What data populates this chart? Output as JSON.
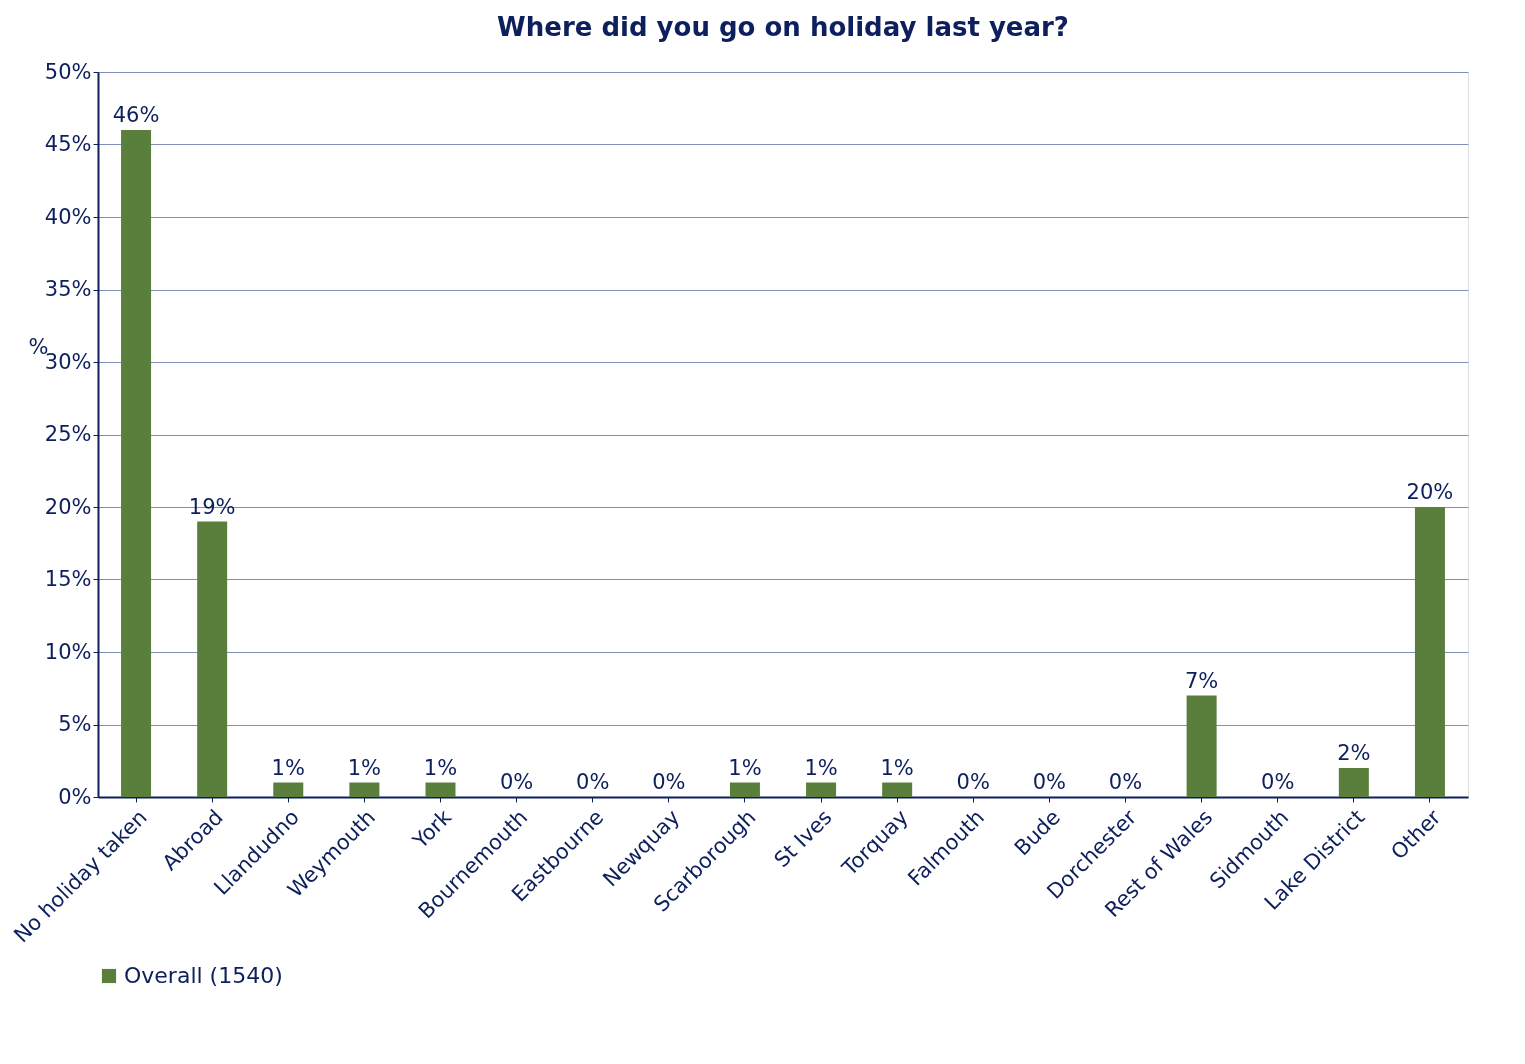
{
  "chart_data": {
    "type": "bar",
    "title": "Where did you go on holiday last year?",
    "ylabel": "%",
    "categories": [
      "No holiday taken",
      "Abroad",
      "Llandudno",
      "Weymouth",
      "York",
      "Bournemouth",
      "Eastbourne",
      "Newquay",
      "Scarborough",
      "St Ives",
      "Torquay",
      "Falmouth",
      "Bude",
      "Dorchester",
      "Rest of Wales",
      "Sidmouth",
      "Lake District",
      "Other"
    ],
    "series": [
      {
        "name": "Overall (1540)",
        "color": "#5a7f3c",
        "values": [
          46,
          19,
          1,
          1,
          1,
          0,
          0,
          0,
          1,
          1,
          1,
          0,
          0,
          0,
          7,
          0,
          2,
          20
        ],
        "value_labels": [
          "46%",
          "19%",
          "1%",
          "1%",
          "1%",
          "0%",
          "0%",
          "0%",
          "1%",
          "1%",
          "1%",
          "0%",
          "0%",
          "0%",
          "7%",
          "0%",
          "2%",
          "20%"
        ]
      }
    ],
    "ylim": [
      0,
      50
    ],
    "yticks": [
      {
        "value": 0,
        "label": "0%"
      },
      {
        "value": 5,
        "label": "5%"
      },
      {
        "value": 10,
        "label": "10%"
      },
      {
        "value": 15,
        "label": "15%"
      },
      {
        "value": 20,
        "label": "20%"
      },
      {
        "value": 25,
        "label": "25%"
      },
      {
        "value": 30,
        "label": "30%"
      },
      {
        "value": 35,
        "label": "35%"
      },
      {
        "value": 40,
        "label": "40%"
      },
      {
        "value": 45,
        "label": "45%"
      },
      {
        "value": 50,
        "label": "50%"
      }
    ],
    "grid": "y",
    "legend": "bottom"
  }
}
